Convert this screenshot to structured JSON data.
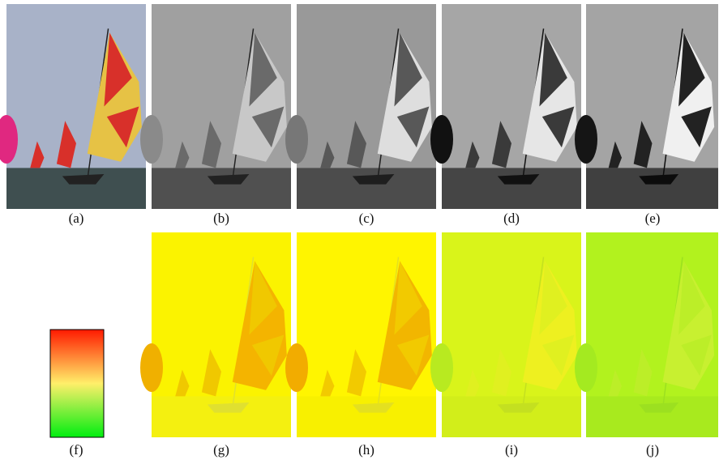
{
  "top_row": [
    "(a)",
    "(b)",
    "(c)",
    "(d)",
    "(e)"
  ],
  "bottom_row": [
    "(f)",
    "(g)",
    "(h)",
    "(i)",
    "(j)"
  ]
}
